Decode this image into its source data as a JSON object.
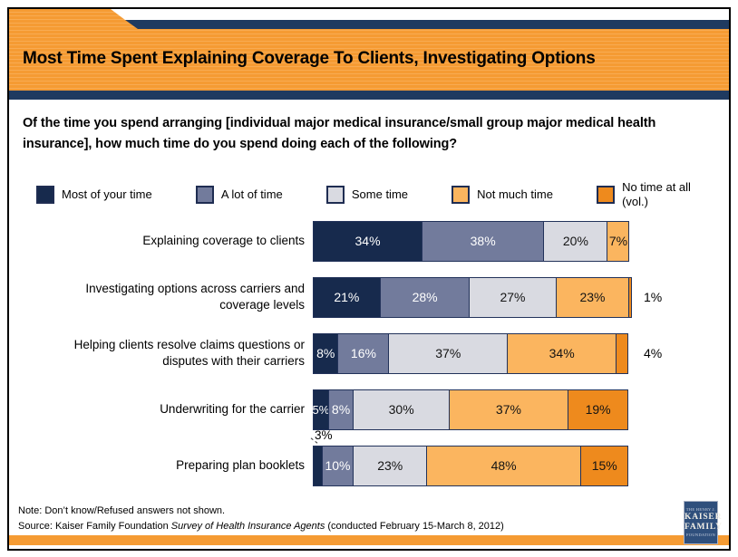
{
  "header": {
    "title": "Most Time Spent Explaining Coverage To Clients, Investigating Options"
  },
  "question": "Of the time you spend arranging [individual major medical insurance/small group major medical health insurance], how much time do you spend doing each of the following?",
  "legend": [
    {
      "label": "Most of your time",
      "color": "#172a4d"
    },
    {
      "label": "A lot of time",
      "color": "#727b9c"
    },
    {
      "label": "Some time",
      "color": "#d9dae1"
    },
    {
      "label": "Not much time",
      "color": "#fbb55f"
    },
    {
      "label": "No time at all\n(vol.)",
      "color": "#ee8a1d"
    }
  ],
  "chart_data": {
    "type": "bar",
    "orientation": "horizontal-stacked",
    "unit": "percent",
    "xlim": [
      0,
      100
    ],
    "grid": false,
    "legend_position": "top",
    "series_names": [
      "Most of your time",
      "A lot of time",
      "Some time",
      "Not much time",
      "No time at all (vol.)"
    ],
    "colors": [
      "#172a4d",
      "#727b9c",
      "#d9dae1",
      "#fbb55f",
      "#ee8a1d"
    ],
    "inside_label_colors": [
      "#ffffff",
      "#ffffff",
      "#141414",
      "#141414",
      "#141414"
    ],
    "rows": [
      {
        "category": "Explaining coverage to clients",
        "segments": [
          {
            "value": 34,
            "text": "34%",
            "label_pos": "inside"
          },
          {
            "value": 38,
            "text": "38%",
            "label_pos": "inside"
          },
          {
            "value": 20,
            "text": "20%",
            "label_pos": "inside"
          },
          {
            "value": 7,
            "text": "7%",
            "label_pos": "inside"
          },
          {
            "value": 0,
            "text": "",
            "label_pos": "none"
          }
        ]
      },
      {
        "category": "Investigating options across carriers and\ncoverage levels",
        "segments": [
          {
            "value": 21,
            "text": "21%",
            "label_pos": "inside"
          },
          {
            "value": 28,
            "text": "28%",
            "label_pos": "inside"
          },
          {
            "value": 27,
            "text": "27%",
            "label_pos": "inside"
          },
          {
            "value": 23,
            "text": "23%",
            "label_pos": "inside"
          },
          {
            "value": 1,
            "text": "1%",
            "label_pos": "outside"
          }
        ]
      },
      {
        "category": "Helping clients resolve claims questions or\ndisputes with their carriers",
        "segments": [
          {
            "value": 8,
            "text": "8%",
            "label_pos": "inside"
          },
          {
            "value": 16,
            "text": "16%",
            "label_pos": "inside"
          },
          {
            "value": 37,
            "text": "37%",
            "label_pos": "inside"
          },
          {
            "value": 34,
            "text": "34%",
            "label_pos": "inside"
          },
          {
            "value": 4,
            "text": "4%",
            "label_pos": "outside"
          }
        ]
      },
      {
        "category": "Underwriting for the carrier",
        "segments": [
          {
            "value": 5,
            "text": "5%",
            "label_pos": "inside"
          },
          {
            "value": 8,
            "text": "8%",
            "label_pos": "inside"
          },
          {
            "value": 30,
            "text": "30%",
            "label_pos": "inside"
          },
          {
            "value": 37,
            "text": "37%",
            "label_pos": "inside"
          },
          {
            "value": 19,
            "text": "19%",
            "label_pos": "inside"
          }
        ]
      },
      {
        "category": "Preparing plan booklets",
        "segments": [
          {
            "value": 3,
            "text": "3%",
            "label_pos": "callout"
          },
          {
            "value": 10,
            "text": "10%",
            "label_pos": "inside"
          },
          {
            "value": 23,
            "text": "23%",
            "label_pos": "inside"
          },
          {
            "value": 48,
            "text": "48%",
            "label_pos": "inside"
          },
          {
            "value": 15,
            "text": "15%",
            "label_pos": "inside"
          }
        ]
      }
    ]
  },
  "footer": {
    "note": "Note: Don’t know/Refused answers not shown.",
    "source_prefix": "Source: Kaiser Family Foundation ",
    "source_italic": "Survey of Health Insurance Agents",
    "source_suffix": " (conducted February 15-March 8, 2012)",
    "logo": {
      "top": "THE HENRY J.",
      "line1": "KAISER",
      "line2": "FAMILY",
      "bottom": "FOUNDATION"
    }
  }
}
